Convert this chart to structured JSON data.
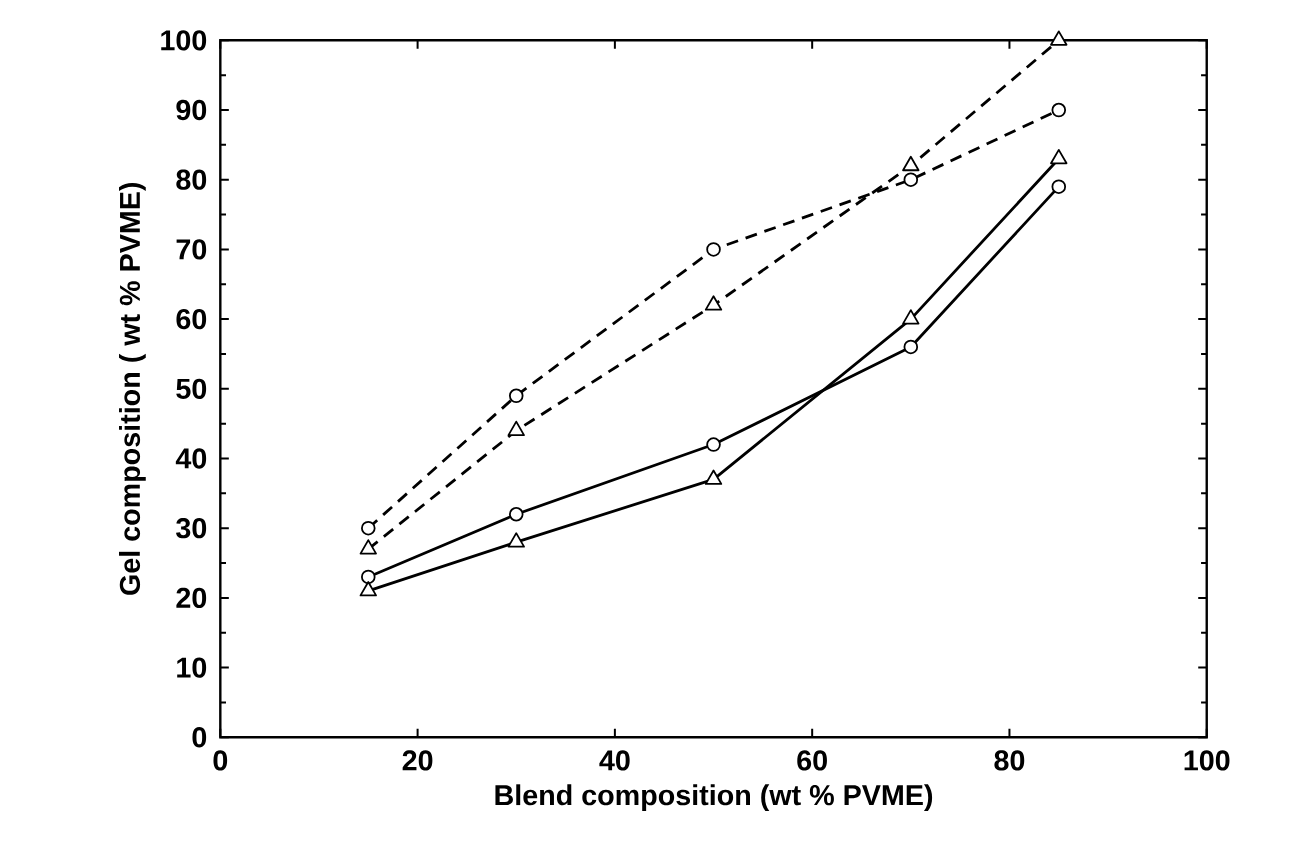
{
  "chart_data": {
    "type": "line",
    "xlabel": "Blend composition (wt % PVME)",
    "ylabel": "Gel composition ( wt % PVME)",
    "xlim": [
      0,
      100
    ],
    "ylim": [
      0,
      100
    ],
    "xticks": [
      0,
      20,
      40,
      60,
      80,
      100
    ],
    "yticks": [
      0,
      10,
      20,
      30,
      40,
      50,
      60,
      70,
      80,
      90,
      100
    ],
    "grid": false,
    "series": [
      {
        "color": "#000000",
        "marker": "circle",
        "line_style": "dashed",
        "x": [
          15,
          30,
          50,
          70,
          85
        ],
        "values": [
          30,
          49,
          70,
          80,
          90
        ]
      },
      {
        "color": "#000000",
        "marker": "triangle",
        "line_style": "dashed",
        "x": [
          15,
          30,
          50,
          70,
          85
        ],
        "values": [
          27,
          44,
          62,
          82,
          100
        ]
      },
      {
        "color": "#000000",
        "marker": "circle",
        "line_style": "solid",
        "x": [
          15,
          30,
          50,
          70,
          85
        ],
        "values": [
          23,
          32,
          42,
          56,
          79
        ]
      },
      {
        "color": "#000000",
        "marker": "triangle",
        "line_style": "solid",
        "x": [
          15,
          30,
          50,
          70,
          85
        ],
        "values": [
          21,
          28,
          37,
          60,
          83
        ]
      }
    ]
  }
}
